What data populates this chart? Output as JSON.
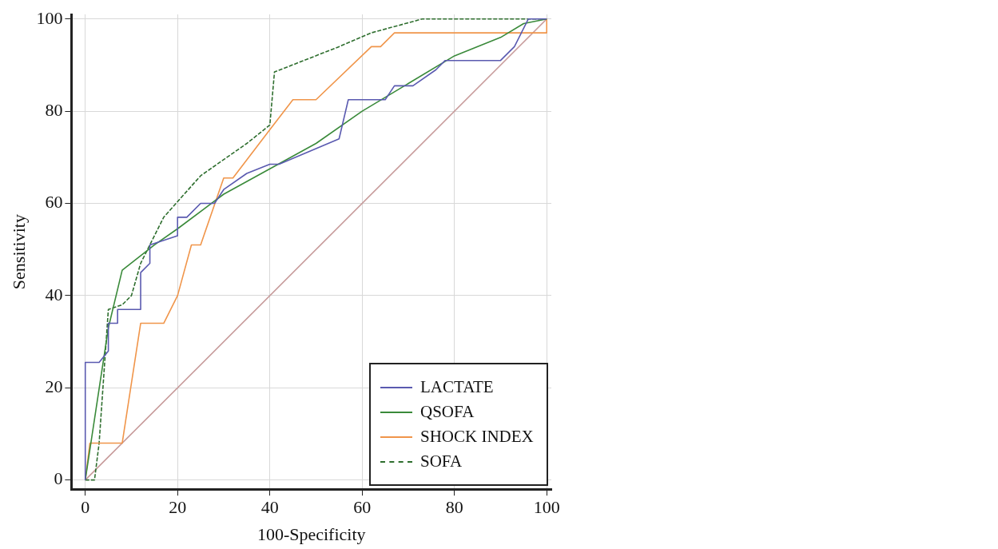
{
  "chart_data": {
    "type": "line",
    "xlabel": "100-Specificity",
    "ylabel": "Sensitivity",
    "xlim": [
      -3,
      101
    ],
    "ylim": [
      -2,
      101
    ],
    "xticks": [
      0,
      20,
      40,
      60,
      80,
      100
    ],
    "yticks": [
      0,
      20,
      40,
      60,
      80,
      100
    ],
    "grid": true,
    "legend": "bottom right",
    "marker": "none",
    "series": [
      {
        "name": "LACTATE",
        "color": "#5a5ab0",
        "line_style": "solid",
        "x": [
          0,
          0,
          3,
          5,
          5,
          7,
          7,
          12,
          12,
          14,
          14,
          20,
          20,
          22,
          25,
          28,
          30,
          35,
          40,
          42,
          55,
          57,
          65,
          67,
          71,
          76,
          78,
          90,
          93,
          96,
          100
        ],
        "values": [
          0,
          25.5,
          25.5,
          28,
          34,
          34,
          37,
          37,
          45,
          47,
          51,
          53,
          57,
          57,
          60,
          60,
          63,
          66.5,
          68.5,
          68.5,
          74,
          82.5,
          82.5,
          85.5,
          85.5,
          89,
          91,
          91,
          94,
          100,
          100
        ]
      },
      {
        "name": "QSOFA",
        "color": "#3a8a3a",
        "line_style": "solid",
        "x": [
          0,
          5,
          8,
          15,
          20,
          30,
          40,
          50,
          60,
          70,
          80,
          90,
          95,
          100
        ],
        "values": [
          0,
          33,
          45.5,
          51,
          54.5,
          62,
          67.5,
          73,
          80,
          86,
          92,
          96,
          99,
          100
        ]
      },
      {
        "name": "SHOCK INDEX",
        "color": "#f0954a",
        "line_style": "solid",
        "x": [
          0,
          1,
          8,
          12,
          17,
          20,
          23,
          25,
          30,
          32,
          40,
          45,
          50,
          62,
          64,
          67,
          100,
          100
        ],
        "values": [
          0,
          8,
          8,
          34,
          34,
          40,
          51,
          51,
          65.5,
          65.5,
          76,
          82.5,
          82.5,
          94,
          94,
          97,
          97,
          100
        ]
      },
      {
        "name": "SOFA",
        "color": "#2e6e2e",
        "line_style": "dashed",
        "x": [
          0,
          2,
          3,
          5,
          8,
          10,
          12,
          17,
          25,
          35,
          40,
          41,
          55,
          62,
          73,
          100
        ],
        "values": [
          0,
          0,
          8,
          37,
          38,
          40,
          47,
          57,
          66,
          73,
          77,
          88.5,
          94,
          97,
          100,
          100
        ]
      },
      {
        "color": "#c79a9a",
        "line_style": "solid",
        "x": [
          0,
          100
        ],
        "values": [
          0,
          100
        ]
      }
    ]
  }
}
